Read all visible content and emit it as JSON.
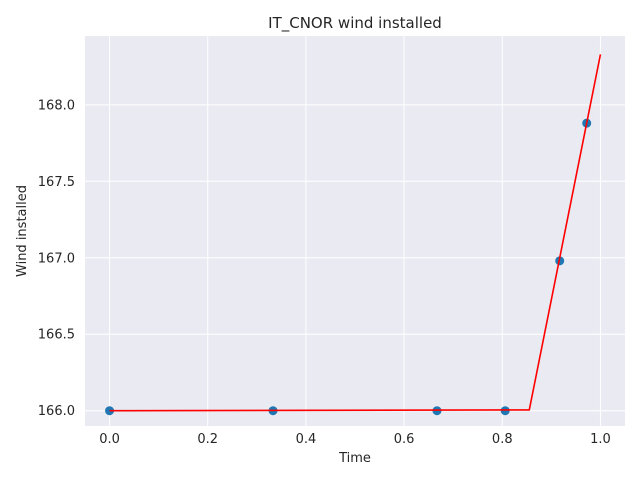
{
  "chart_data": {
    "type": "scatter",
    "title": "IT_CNOR wind installed",
    "xlabel": "Time",
    "ylabel": "Wind installed",
    "xlim": [
      -0.05,
      1.05
    ],
    "ylim": [
      165.9,
      168.45
    ],
    "xticks": [
      0.0,
      0.2,
      0.4,
      0.6,
      0.8,
      1.0
    ],
    "xtick_labels": [
      "0.0",
      "0.2",
      "0.4",
      "0.6",
      "0.8",
      "1.0"
    ],
    "yticks": [
      166.0,
      166.5,
      167.0,
      167.5,
      168.0
    ],
    "ytick_labels": [
      "166.0",
      "166.5",
      "167.0",
      "167.5",
      "168.0"
    ],
    "grid": true,
    "background": "#eaeaf2",
    "points": {
      "color": "#1f77b4",
      "x": [
        0.0,
        0.333,
        0.667,
        0.806,
        0.917,
        0.972
      ],
      "y": [
        166.0,
        166.0,
        166.0,
        166.0,
        166.98,
        167.88
      ]
    },
    "fit_line": {
      "color": "#ff0000",
      "x": [
        0.0,
        0.855,
        1.0
      ],
      "y": [
        166.0,
        166.005,
        168.33
      ]
    }
  }
}
